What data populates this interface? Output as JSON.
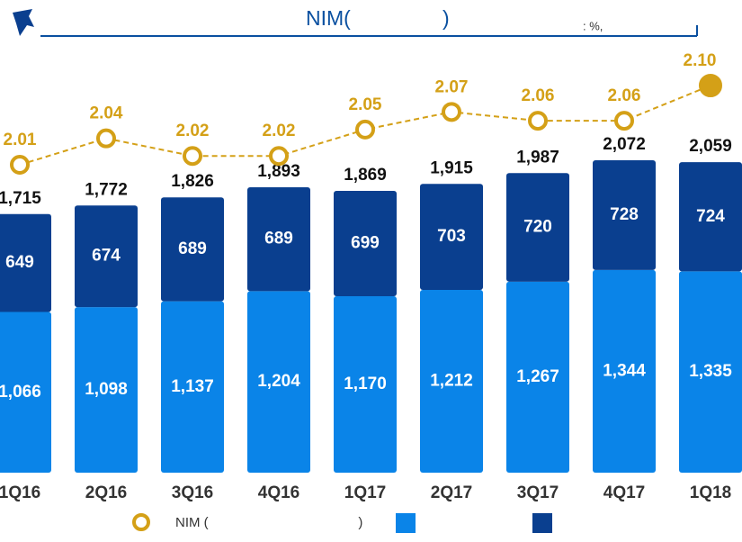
{
  "chart_data": {
    "type": "bar",
    "title": "NIM(                )",
    "unit_note": ": %,",
    "categories": [
      "1Q16",
      "2Q16",
      "3Q16",
      "4Q16",
      "1Q17",
      "2Q17",
      "3Q17",
      "4Q17",
      "1Q18"
    ],
    "series": [
      {
        "name": "NIM (                                        )",
        "type": "line",
        "color": "#d4a017",
        "values": [
          2.01,
          2.04,
          2.02,
          2.02,
          2.05,
          2.07,
          2.06,
          2.06,
          2.1
        ],
        "value_labels": [
          "2.01",
          "2.04",
          "2.02",
          "2.02",
          "2.05",
          "2.07",
          "2.06",
          "2.06",
          "2.10"
        ]
      },
      {
        "type": "bar",
        "color": "#0a84e8",
        "values": [
          1066,
          1098,
          1137,
          1204,
          1170,
          1212,
          1267,
          1344,
          1335
        ],
        "value_labels": [
          "1,066",
          "1,098",
          "1,137",
          "1,204",
          "1,170",
          "1,212",
          "1,267",
          "1,344",
          "1,335"
        ]
      },
      {
        "type": "bar",
        "color": "#0a3f8f",
        "values": [
          649,
          674,
          689,
          689,
          699,
          703,
          720,
          728,
          724
        ]
      }
    ],
    "total_labels": [
      "1,715",
      "1,772",
      "1,826",
      "1,893",
      "1,869",
      "1,915",
      "1,987",
      "2,072",
      "2,059"
    ]
  }
}
